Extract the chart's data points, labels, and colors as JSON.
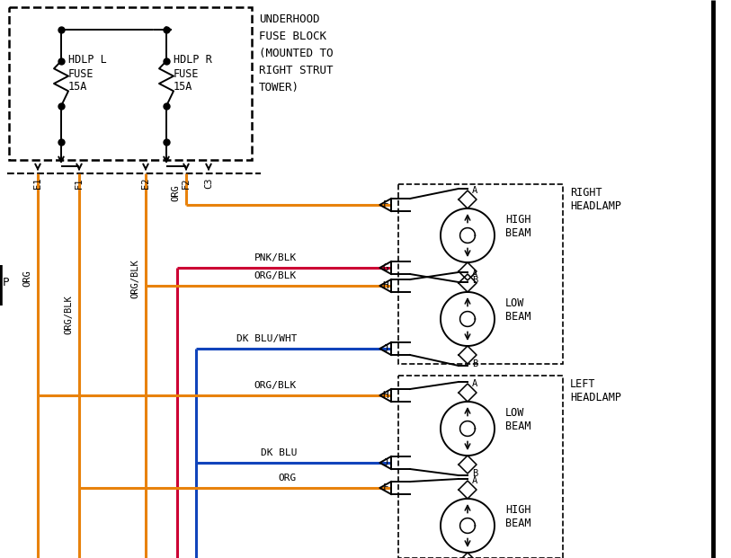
{
  "bg_color": "#ffffff",
  "wire_orange": "#E8820C",
  "wire_red": "#CC0033",
  "wire_blue": "#1144BB",
  "wire_black": "#000000",
  "fuse_block_text": [
    "UNDERHOOD",
    "FUSE BLOCK",
    "(MOUNTED TO",
    "RIGHT STRUT",
    "TOWER)"
  ],
  "right_headlamp_label": [
    "RIGHT",
    "HEADLAMP"
  ],
  "left_headlamp_label": [
    "LEFT",
    "HEADLAMP"
  ],
  "wire_labels_left": [
    "ORG",
    "ORG/BLK",
    "ORG/BLK",
    "ORG"
  ],
  "connector_labels": [
    "E1",
    "F1",
    "E2",
    "F2",
    "C3"
  ]
}
